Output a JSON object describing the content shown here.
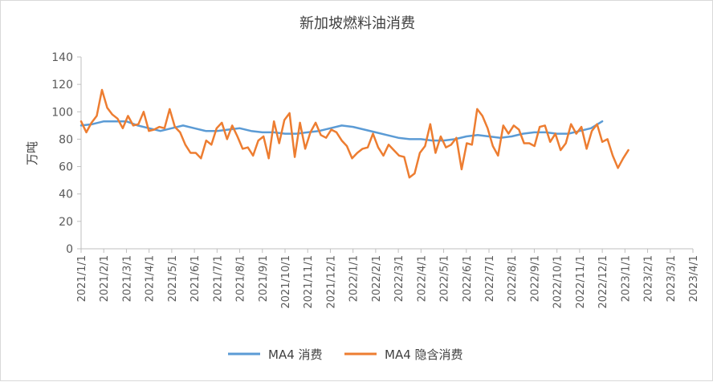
{
  "chart_data": {
    "type": "line",
    "title": "新加坡燃料油消费",
    "ylabel": "万吨",
    "xlabel": "",
    "ylim": [
      0,
      140
    ],
    "yticks": [
      0,
      20,
      40,
      60,
      80,
      100,
      120,
      140
    ],
    "x_tick_labels": [
      "2021/1/1",
      "2021/2/1",
      "2021/3/1",
      "2021/4/1",
      "2021/5/1",
      "2021/6/1",
      "2021/7/1",
      "2021/8/1",
      "2021/9/1",
      "2021/10/1",
      "2021/11/1",
      "2021/12/1",
      "2022/1/1",
      "2022/2/1",
      "2022/3/1",
      "2022/4/1",
      "2022/5/1",
      "2022/6/1",
      "2022/7/1",
      "2022/8/1",
      "2022/9/1",
      "2022/10/1",
      "2022/11/1",
      "2022/12/1",
      "2023/1/1",
      "2023/2/1",
      "2023/3/1",
      "2023/4/1"
    ],
    "x_range": [
      0,
      27
    ],
    "legend_position": "bottom",
    "series": [
      {
        "name": "MA4 消费",
        "color": "#5b9bd5",
        "x": [
          0,
          0.5,
          1,
          1.5,
          2,
          2.5,
          3,
          3.5,
          4,
          4.5,
          5,
          5.5,
          6,
          6.5,
          7,
          7.5,
          8,
          8.5,
          9,
          9.5,
          10,
          10.5,
          11,
          11.5,
          12,
          12.5,
          13,
          13.5,
          14,
          14.5,
          15,
          15.5,
          16,
          16.5,
          17,
          17.5,
          18,
          18.5,
          19,
          19.5,
          20,
          20.5,
          21,
          21.5,
          22,
          22.5,
          23
        ],
        "values": [
          90,
          91,
          93,
          93,
          93,
          90,
          88,
          86,
          88,
          90,
          88,
          86,
          86,
          87,
          88,
          86,
          85,
          85,
          84,
          84,
          85,
          86,
          88,
          90,
          89,
          87,
          85,
          83,
          81,
          80,
          80,
          79,
          79,
          80,
          82,
          83,
          82,
          81,
          82,
          84,
          85,
          85,
          84,
          84,
          86,
          88,
          93
        ]
      },
      {
        "name": "MA4 隐含消费",
        "color": "#ed7d31",
        "x": [
          0,
          0.23,
          0.46,
          0.69,
          0.92,
          1.15,
          1.38,
          1.61,
          1.84,
          2.07,
          2.3,
          2.53,
          2.76,
          2.99,
          3.22,
          3.45,
          3.68,
          3.91,
          4.14,
          4.37,
          4.6,
          4.83,
          5.06,
          5.29,
          5.52,
          5.75,
          5.98,
          6.21,
          6.44,
          6.67,
          6.9,
          7.13,
          7.36,
          7.59,
          7.82,
          8.05,
          8.28,
          8.51,
          8.74,
          8.97,
          9.2,
          9.43,
          9.66,
          9.89,
          10.12,
          10.35,
          10.58,
          10.81,
          11.04,
          11.27,
          11.5,
          11.73,
          11.96,
          12.19,
          12.42,
          12.65,
          12.88,
          13.11,
          13.34,
          13.57,
          13.8,
          14.03,
          14.26,
          14.49,
          14.72,
          14.95,
          15.18,
          15.41,
          15.64,
          15.87,
          16.1,
          16.33,
          16.56,
          16.79,
          17.02,
          17.25,
          17.48,
          17.71,
          17.94,
          18.17,
          18.4,
          18.63,
          18.86,
          19.09,
          19.32,
          19.55,
          19.78,
          20.01,
          20.24,
          20.47,
          20.7,
          20.93,
          21.16,
          21.39,
          21.62,
          21.85,
          22.08,
          22.31,
          22.54,
          22.77,
          23.0,
          23.23,
          23.46,
          23.69,
          23.92,
          24.15
        ],
        "values": [
          93,
          85,
          92,
          97,
          116,
          103,
          98,
          95,
          88,
          97,
          90,
          91,
          100,
          86,
          87,
          89,
          88,
          102,
          89,
          85,
          76,
          70,
          70,
          66,
          79,
          76,
          88,
          92,
          80,
          90,
          82,
          73,
          74,
          68,
          79,
          82,
          66,
          93,
          77,
          94,
          99,
          67,
          92,
          73,
          85,
          92,
          83,
          81,
          87,
          85,
          79,
          75,
          66,
          70,
          73,
          74,
          84,
          74,
          68,
          76,
          72,
          68,
          67,
          52,
          55,
          70,
          75,
          91,
          70,
          82,
          74,
          76,
          81,
          58,
          77,
          76,
          102,
          97,
          88,
          75,
          68,
          90,
          84,
          90,
          87,
          77,
          77,
          75,
          89,
          90,
          78,
          84,
          72,
          77,
          91,
          84,
          89,
          73,
          86,
          91,
          78,
          80,
          68,
          59,
          66,
          72
        ]
      }
    ]
  }
}
